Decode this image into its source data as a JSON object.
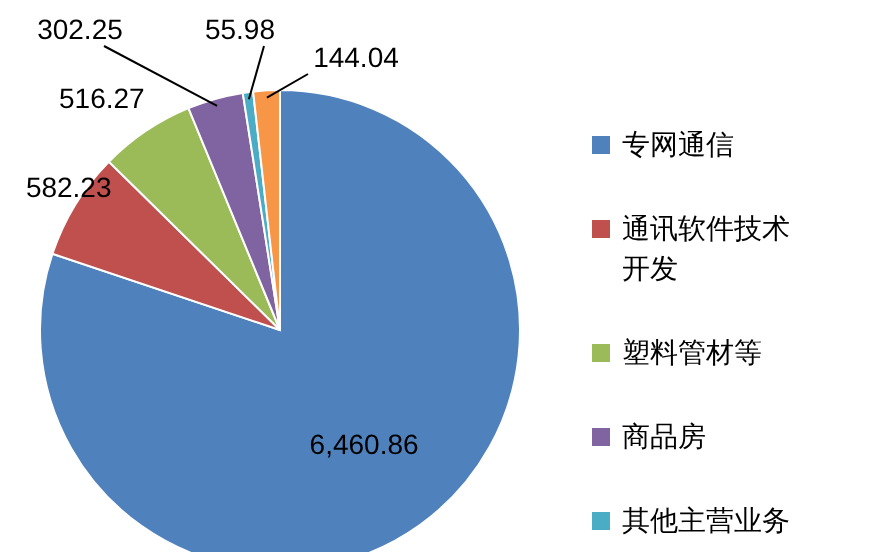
{
  "chart_data": {
    "type": "pie",
    "categories": [
      "专网通信",
      "通讯软件技术开发",
      "塑料管材等",
      "商品房",
      "其他主营业务",
      null
    ],
    "values": [
      6460.86,
      582.23,
      516.27,
      302.25,
      55.98,
      144.04
    ],
    "value_labels": [
      "6,460.86",
      "582.23",
      "516.27",
      "302.25",
      "55.98",
      "144.04"
    ],
    "colors": [
      "#4f81bd",
      "#c0504d",
      "#9bbb59",
      "#8064a2",
      "#4bacc6",
      "#f79646"
    ],
    "legend": "right"
  }
}
